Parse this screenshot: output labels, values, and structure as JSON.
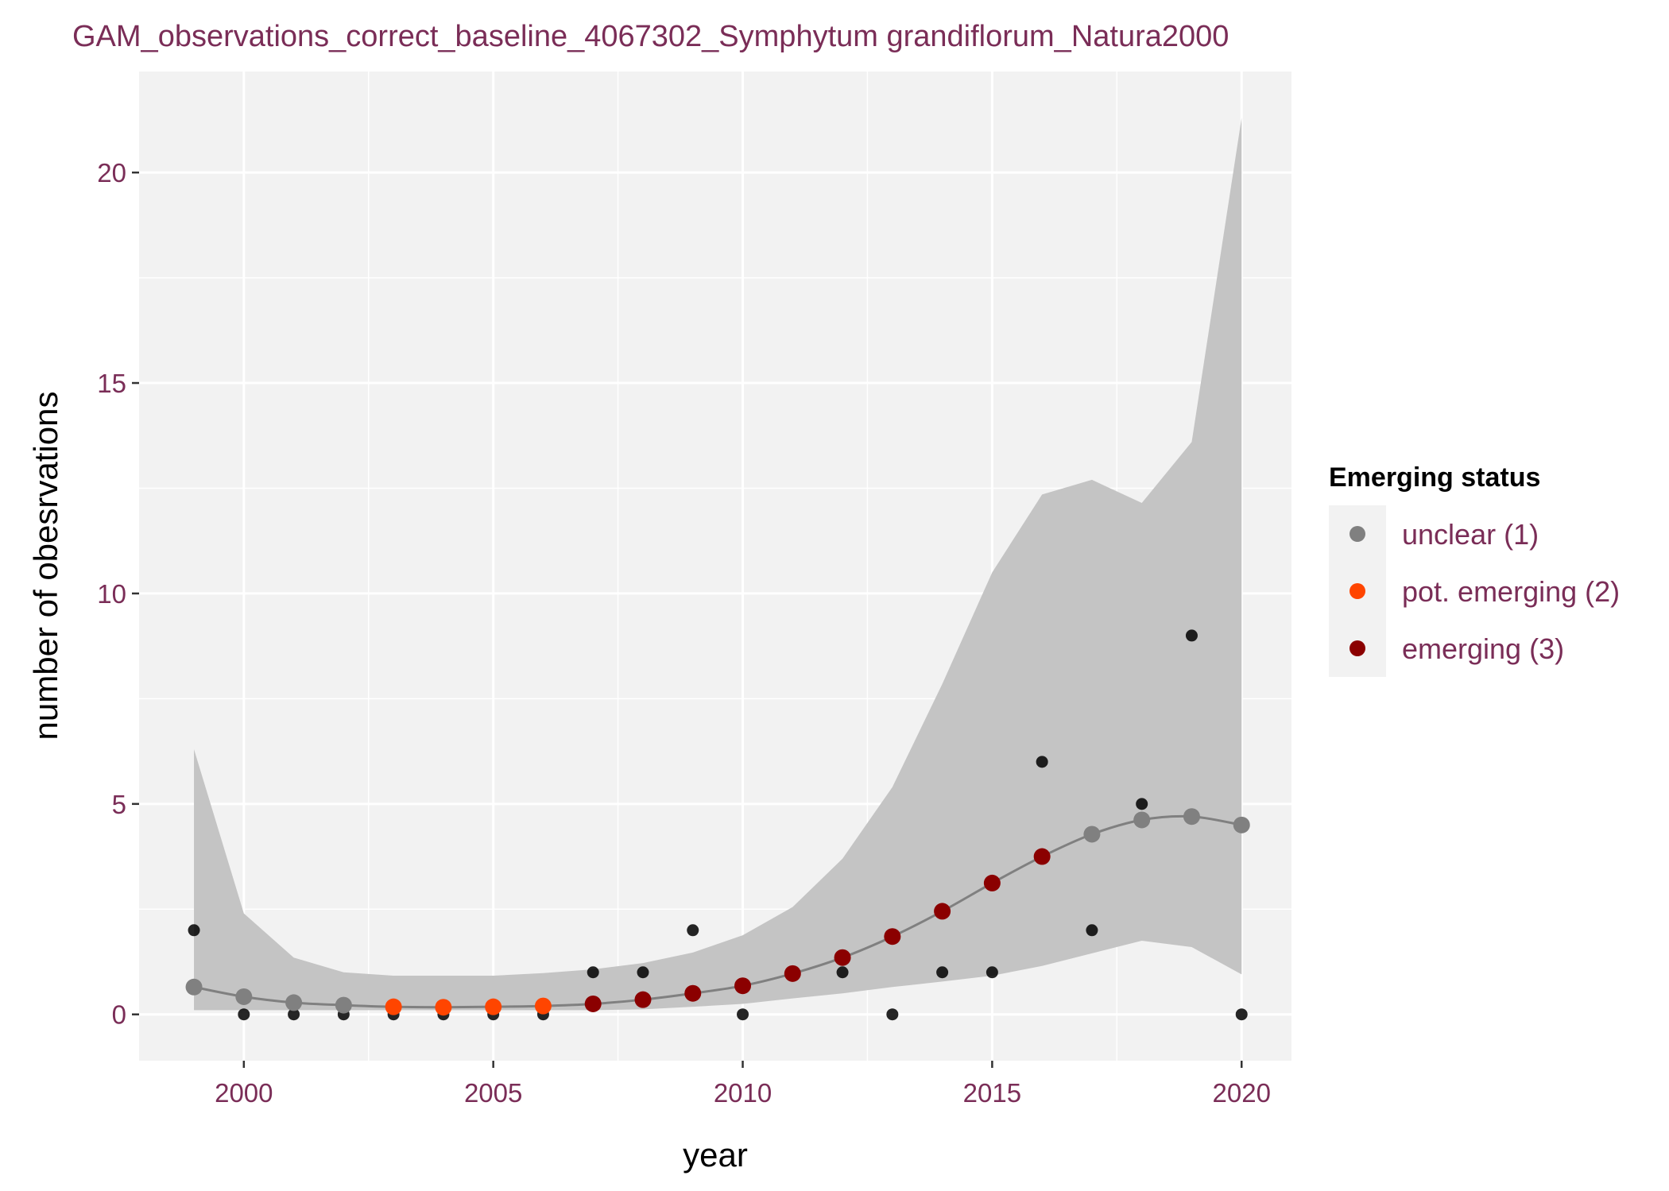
{
  "chart_data": {
    "type": "scatter",
    "title": "GAM_observations_correct_baseline_4067302_Symphytum grandiflorum_Natura2000",
    "xlabel": "year",
    "ylabel": "number of obesrvations",
    "xlim": [
      1997.9,
      2021.0
    ],
    "ylim": [
      -1.1,
      22.4
    ],
    "x_ticks": [
      2000,
      2005,
      2010,
      2015,
      2020
    ],
    "y_ticks": [
      0,
      5,
      10,
      15,
      20
    ],
    "grid": true,
    "legend": {
      "title": "Emerging status",
      "position": "right",
      "entries": [
        {
          "label": "unclear (1)",
          "color": "#808080"
        },
        {
          "label": "pot. emerging (2)",
          "color": "#ff4500"
        },
        {
          "label": "emerging (3)",
          "color": "#8b0000"
        }
      ]
    },
    "observations": {
      "color": "#000000",
      "points": [
        [
          1999,
          2
        ],
        [
          2000,
          0
        ],
        [
          2001,
          0
        ],
        [
          2002,
          0
        ],
        [
          2003,
          0
        ],
        [
          2004,
          0
        ],
        [
          2005,
          0
        ],
        [
          2006,
          0
        ],
        [
          2007,
          1
        ],
        [
          2008,
          1
        ],
        [
          2009,
          2
        ],
        [
          2010,
          0
        ],
        [
          2012,
          1
        ],
        [
          2013,
          0
        ],
        [
          2014,
          1
        ],
        [
          2015,
          1
        ],
        [
          2016,
          6
        ],
        [
          2017,
          2
        ],
        [
          2018,
          5
        ],
        [
          2019,
          9
        ],
        [
          2020,
          0
        ]
      ]
    },
    "fit": {
      "line_color": "#808080",
      "band_color": "#c4c4c4",
      "points": [
        {
          "x": 1999,
          "y": 0.65,
          "lower": 0.1,
          "upper": 6.3,
          "status": 1
        },
        {
          "x": 2000,
          "y": 0.42,
          "lower": 0.1,
          "upper": 2.4,
          "status": 1
        },
        {
          "x": 2001,
          "y": 0.28,
          "lower": 0.1,
          "upper": 1.35,
          "status": 1
        },
        {
          "x": 2002,
          "y": 0.22,
          "lower": 0.1,
          "upper": 1.0,
          "status": 1
        },
        {
          "x": 2003,
          "y": 0.18,
          "lower": 0.1,
          "upper": 0.92,
          "status": 2
        },
        {
          "x": 2004,
          "y": 0.17,
          "lower": 0.1,
          "upper": 0.92,
          "status": 2
        },
        {
          "x": 2005,
          "y": 0.18,
          "lower": 0.1,
          "upper": 0.92,
          "status": 2
        },
        {
          "x": 2006,
          "y": 0.2,
          "lower": 0.1,
          "upper": 0.98,
          "status": 2
        },
        {
          "x": 2007,
          "y": 0.25,
          "lower": 0.1,
          "upper": 1.07,
          "status": 3
        },
        {
          "x": 2008,
          "y": 0.35,
          "lower": 0.12,
          "upper": 1.22,
          "status": 3
        },
        {
          "x": 2009,
          "y": 0.5,
          "lower": 0.18,
          "upper": 1.47,
          "status": 3
        },
        {
          "x": 2010,
          "y": 0.68,
          "lower": 0.25,
          "upper": 1.88,
          "status": 3
        },
        {
          "x": 2011,
          "y": 0.97,
          "lower": 0.38,
          "upper": 2.55,
          "status": 3
        },
        {
          "x": 2012,
          "y": 1.35,
          "lower": 0.5,
          "upper": 3.7,
          "status": 3
        },
        {
          "x": 2013,
          "y": 1.85,
          "lower": 0.65,
          "upper": 5.4,
          "status": 3
        },
        {
          "x": 2014,
          "y": 2.45,
          "lower": 0.78,
          "upper": 7.85,
          "status": 3
        },
        {
          "x": 2015,
          "y": 3.12,
          "lower": 0.92,
          "upper": 10.5,
          "status": 3
        },
        {
          "x": 2016,
          "y": 3.75,
          "lower": 1.15,
          "upper": 12.35,
          "status": 3
        },
        {
          "x": 2017,
          "y": 4.28,
          "lower": 1.45,
          "upper": 12.7,
          "status": 1
        },
        {
          "x": 2018,
          "y": 4.62,
          "lower": 1.75,
          "upper": 12.15,
          "status": 1
        },
        {
          "x": 2019,
          "y": 4.7,
          "lower": 1.6,
          "upper": 13.6,
          "status": 1
        },
        {
          "x": 2020,
          "y": 4.5,
          "lower": 0.95,
          "upper": 21.3,
          "status": 1
        }
      ]
    }
  }
}
